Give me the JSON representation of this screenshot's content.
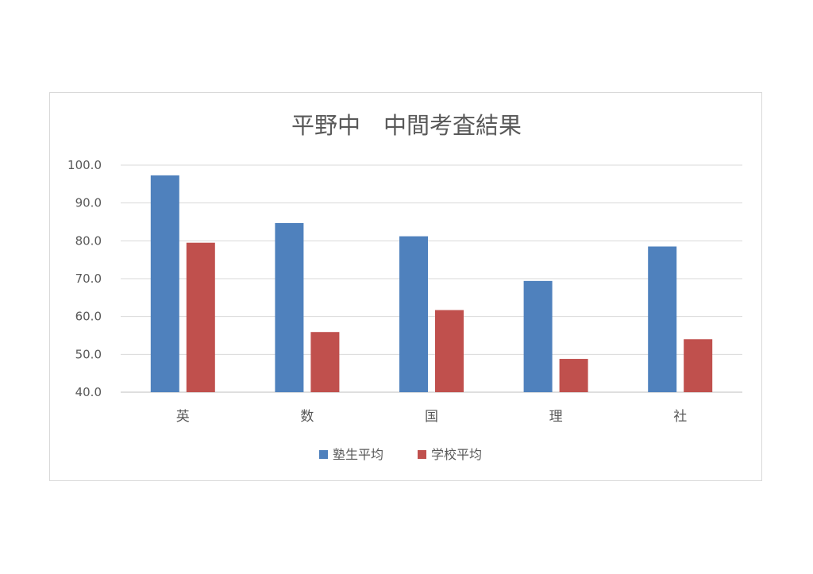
{
  "chart_data": {
    "type": "bar",
    "title": "平野中　中間考査結果",
    "categories": [
      "英",
      "数",
      "国",
      "理",
      "社"
    ],
    "series": [
      {
        "name": "塾生平均",
        "values": [
          97.3,
          84.7,
          81.2,
          69.4,
          78.5
        ],
        "color": "#4f81bd"
      },
      {
        "name": "学校平均",
        "values": [
          79.5,
          55.9,
          61.7,
          48.8,
          54.0
        ],
        "color": "#c0504d"
      }
    ],
    "ylim": [
      40,
      100
    ],
    "yticks": [
      "40.0",
      "50.0",
      "60.0",
      "70.0",
      "80.0",
      "90.0",
      "100.0"
    ],
    "grid": true,
    "legend": "bottom"
  }
}
